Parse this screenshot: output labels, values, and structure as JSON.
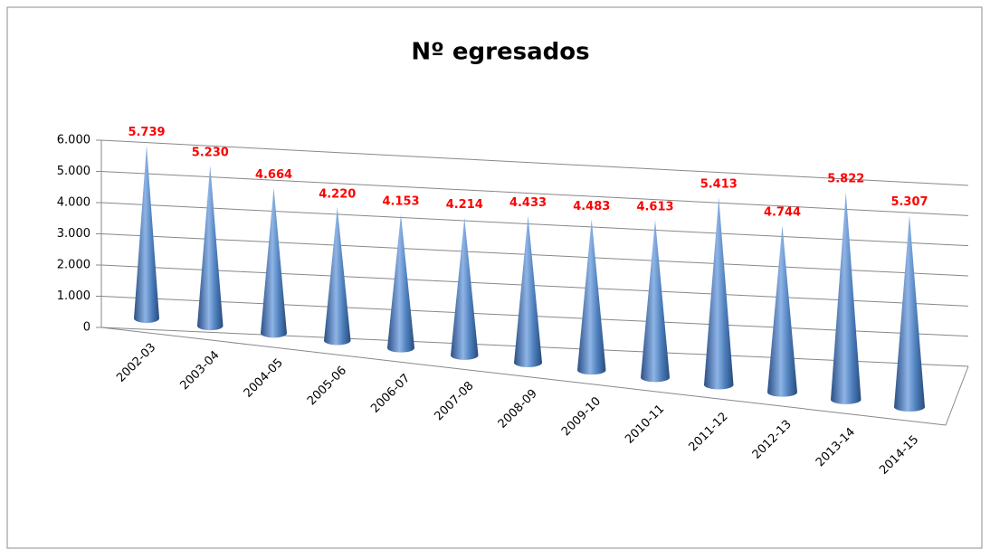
{
  "chart_data": {
    "type": "cone3d",
    "title": "Nº egresados",
    "categories": [
      "2002-03",
      "2003-04",
      "2004-05",
      "2005-06",
      "2006-07",
      "2007-08",
      "2008-09",
      "2009-10",
      "2010-11",
      "2011-12",
      "2012-13",
      "2013-14",
      "2014-15"
    ],
    "values": [
      5739,
      5230,
      4664,
      4220,
      4153,
      4214,
      4433,
      4483,
      4613,
      5413,
      4744,
      5822,
      5307
    ],
    "value_labels": [
      "5.739",
      "5.230",
      "4.664",
      "4.220",
      "4.153",
      "4.214",
      "4.433",
      "4.483",
      "4.613",
      "5.413",
      "4.744",
      "5.822",
      "5.307"
    ],
    "color": "#4f81bd",
    "label_color": "#ff0000",
    "ylim": [
      0,
      6000
    ],
    "yticks": [
      0,
      {
        "value": 1000,
        "label": "1.000"
      },
      {
        "value": 2000,
        "label": "2.000"
      },
      {
        "value": 3000,
        "label": "3.000"
      },
      {
        "value": 4000,
        "label": "4.000"
      },
      {
        "value": 5000,
        "label": "5.000"
      },
      {
        "value": 6000,
        "label": "6.000"
      }
    ],
    "grid": true
  }
}
